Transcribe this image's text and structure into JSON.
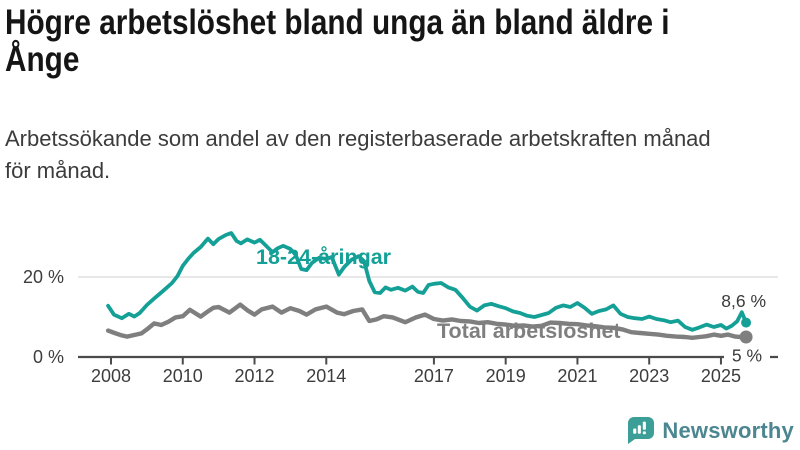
{
  "header": {
    "title_line1": "Högre arbetslöshet bland unga än bland äldre i",
    "title_line2": "Ånge",
    "subtitle_line1": "Arbetssökande som andel av den registerbaserade arbetskraften månad",
    "subtitle_line2": "för månad."
  },
  "chart_data": {
    "type": "line",
    "unit": "%",
    "grid": "horizontal-20-only",
    "x_axis": {
      "ticks": [
        2008,
        2010,
        2012,
        2014,
        2017,
        2019,
        2021,
        2023,
        2025
      ],
      "range": [
        2007.3,
        2026.6
      ]
    },
    "y_axis": {
      "ticks": [
        {
          "value": 0,
          "label": "0 %"
        },
        {
          "value": 20,
          "label": "20 %"
        }
      ],
      "range": [
        0,
        34
      ]
    },
    "series": [
      {
        "name": "18-24-åringar",
        "color": "#14a096",
        "end_label": "8,6 %",
        "end_value": 8.6,
        "points": [
          [
            2007.92,
            12.8
          ],
          [
            2008.08,
            10.6
          ],
          [
            2008.3,
            9.7
          ],
          [
            2008.5,
            10.8
          ],
          [
            2008.65,
            10.1
          ],
          [
            2008.8,
            11.0
          ],
          [
            2009.0,
            13.0
          ],
          [
            2009.2,
            14.6
          ],
          [
            2009.45,
            16.5
          ],
          [
            2009.7,
            18.5
          ],
          [
            2009.85,
            20.2
          ],
          [
            2010.0,
            22.8
          ],
          [
            2010.15,
            24.5
          ],
          [
            2010.3,
            26.0
          ],
          [
            2010.5,
            27.5
          ],
          [
            2010.7,
            29.6
          ],
          [
            2010.85,
            28.2
          ],
          [
            2011.0,
            29.5
          ],
          [
            2011.2,
            30.5
          ],
          [
            2011.35,
            31.0
          ],
          [
            2011.5,
            29.0
          ],
          [
            2011.62,
            28.4
          ],
          [
            2011.8,
            29.4
          ],
          [
            2012.0,
            28.6
          ],
          [
            2012.15,
            29.3
          ],
          [
            2012.3,
            28.0
          ],
          [
            2012.5,
            26.2
          ],
          [
            2012.65,
            27.2
          ],
          [
            2012.8,
            27.8
          ],
          [
            2013.0,
            27.0
          ],
          [
            2013.15,
            25.5
          ],
          [
            2013.3,
            22.0
          ],
          [
            2013.45,
            21.7
          ],
          [
            2013.6,
            23.5
          ],
          [
            2013.8,
            24.8
          ],
          [
            2014.0,
            24.5
          ],
          [
            2014.15,
            25.0
          ],
          [
            2014.35,
            20.6
          ],
          [
            2014.5,
            22.5
          ],
          [
            2014.7,
            24.3
          ],
          [
            2014.9,
            25.2
          ],
          [
            2015.05,
            24.0
          ],
          [
            2015.2,
            19.0
          ],
          [
            2015.35,
            16.2
          ],
          [
            2015.5,
            16.0
          ],
          [
            2015.65,
            17.4
          ],
          [
            2015.8,
            16.8
          ],
          [
            2016.0,
            17.3
          ],
          [
            2016.2,
            16.6
          ],
          [
            2016.4,
            17.6
          ],
          [
            2016.55,
            16.3
          ],
          [
            2016.7,
            16.0
          ],
          [
            2016.85,
            18.0
          ],
          [
            2017.0,
            18.3
          ],
          [
            2017.2,
            18.5
          ],
          [
            2017.4,
            17.4
          ],
          [
            2017.6,
            16.8
          ],
          [
            2017.8,
            14.8
          ],
          [
            2018.0,
            12.6
          ],
          [
            2018.2,
            11.6
          ],
          [
            2018.4,
            12.9
          ],
          [
            2018.6,
            13.3
          ],
          [
            2018.8,
            12.7
          ],
          [
            2019.0,
            12.2
          ],
          [
            2019.2,
            11.4
          ],
          [
            2019.4,
            11.0
          ],
          [
            2019.6,
            10.3
          ],
          [
            2019.8,
            10.0
          ],
          [
            2020.0,
            10.5
          ],
          [
            2020.2,
            11.0
          ],
          [
            2020.4,
            12.3
          ],
          [
            2020.6,
            12.9
          ],
          [
            2020.8,
            12.5
          ],
          [
            2021.0,
            13.5
          ],
          [
            2021.2,
            12.3
          ],
          [
            2021.4,
            10.8
          ],
          [
            2021.6,
            11.5
          ],
          [
            2021.8,
            11.9
          ],
          [
            2022.0,
            12.9
          ],
          [
            2022.2,
            10.8
          ],
          [
            2022.4,
            10.0
          ],
          [
            2022.6,
            9.7
          ],
          [
            2022.8,
            9.5
          ],
          [
            2023.0,
            10.1
          ],
          [
            2023.2,
            9.5
          ],
          [
            2023.4,
            9.2
          ],
          [
            2023.6,
            8.7
          ],
          [
            2023.8,
            9.1
          ],
          [
            2024.0,
            7.5
          ],
          [
            2024.2,
            6.8
          ],
          [
            2024.4,
            7.4
          ],
          [
            2024.6,
            8.1
          ],
          [
            2024.8,
            7.5
          ],
          [
            2025.0,
            8.0
          ],
          [
            2025.15,
            7.1
          ],
          [
            2025.3,
            7.8
          ],
          [
            2025.45,
            8.9
          ],
          [
            2025.58,
            11.2
          ],
          [
            2025.7,
            8.6
          ]
        ]
      },
      {
        "name": "Total arbetslöshet",
        "color": "#7f7f7f",
        "end_label": "5 %",
        "end_value": 5.0,
        "points": [
          [
            2007.92,
            6.6
          ],
          [
            2008.1,
            6.0
          ],
          [
            2008.3,
            5.4
          ],
          [
            2008.45,
            5.1
          ],
          [
            2008.65,
            5.5
          ],
          [
            2008.85,
            5.9
          ],
          [
            2009.0,
            6.9
          ],
          [
            2009.2,
            8.4
          ],
          [
            2009.4,
            8.0
          ],
          [
            2009.6,
            8.8
          ],
          [
            2009.8,
            9.9
          ],
          [
            2010.0,
            10.2
          ],
          [
            2010.2,
            11.8
          ],
          [
            2010.5,
            10.1
          ],
          [
            2010.7,
            11.4
          ],
          [
            2010.85,
            12.3
          ],
          [
            2011.0,
            12.5
          ],
          [
            2011.3,
            11.1
          ],
          [
            2011.6,
            13.1
          ],
          [
            2011.8,
            11.7
          ],
          [
            2012.0,
            10.6
          ],
          [
            2012.2,
            11.9
          ],
          [
            2012.5,
            12.6
          ],
          [
            2012.75,
            11.1
          ],
          [
            2013.0,
            12.2
          ],
          [
            2013.25,
            11.5
          ],
          [
            2013.45,
            10.6
          ],
          [
            2013.7,
            11.9
          ],
          [
            2014.0,
            12.6
          ],
          [
            2014.3,
            11.1
          ],
          [
            2014.5,
            10.7
          ],
          [
            2014.75,
            11.5
          ],
          [
            2015.0,
            11.9
          ],
          [
            2015.2,
            9.0
          ],
          [
            2015.4,
            9.4
          ],
          [
            2015.6,
            10.2
          ],
          [
            2015.85,
            9.9
          ],
          [
            2016.2,
            8.7
          ],
          [
            2016.5,
            9.9
          ],
          [
            2016.75,
            10.6
          ],
          [
            2017.0,
            9.5
          ],
          [
            2017.25,
            9.1
          ],
          [
            2017.5,
            9.4
          ],
          [
            2017.75,
            9.0
          ],
          [
            2018.0,
            8.9
          ],
          [
            2018.25,
            8.5
          ],
          [
            2018.5,
            8.7
          ],
          [
            2018.75,
            8.3
          ],
          [
            2019.0,
            8.1
          ],
          [
            2019.25,
            7.8
          ],
          [
            2019.5,
            7.9
          ],
          [
            2019.75,
            7.6
          ],
          [
            2020.0,
            7.8
          ],
          [
            2020.25,
            8.6
          ],
          [
            2020.5,
            8.5
          ],
          [
            2020.75,
            8.3
          ],
          [
            2021.0,
            8.2
          ],
          [
            2021.25,
            7.9
          ],
          [
            2021.5,
            7.7
          ],
          [
            2021.75,
            7.4
          ],
          [
            2022.0,
            7.3
          ],
          [
            2022.25,
            6.9
          ],
          [
            2022.5,
            6.2
          ],
          [
            2022.75,
            6.0
          ],
          [
            2023.0,
            5.8
          ],
          [
            2023.25,
            5.6
          ],
          [
            2023.5,
            5.3
          ],
          [
            2023.75,
            5.1
          ],
          [
            2024.0,
            5.0
          ],
          [
            2024.2,
            4.8
          ],
          [
            2024.4,
            5.0
          ],
          [
            2024.6,
            5.2
          ],
          [
            2024.8,
            5.6
          ],
          [
            2025.0,
            5.3
          ],
          [
            2025.2,
            5.6
          ],
          [
            2025.4,
            5.1
          ],
          [
            2025.55,
            5.0
          ],
          [
            2025.7,
            5.0
          ]
        ]
      }
    ]
  },
  "branding": {
    "logo_text": "Newsworthy",
    "logo_icon": "bar-chart-speech-bubble-icon",
    "icon_color": "#3b9f98",
    "text_color": "#4b8691"
  },
  "colors": {
    "background": "#ffffff",
    "title": "#151515",
    "subtitle": "#3c3c3c",
    "axis": "#4b4b4b",
    "tick_label": "#3d3d3d",
    "gridline": "#dadada",
    "youth_series": "#14a096",
    "total_series": "#7f7f7f",
    "end_label": "#3a3a3a"
  }
}
